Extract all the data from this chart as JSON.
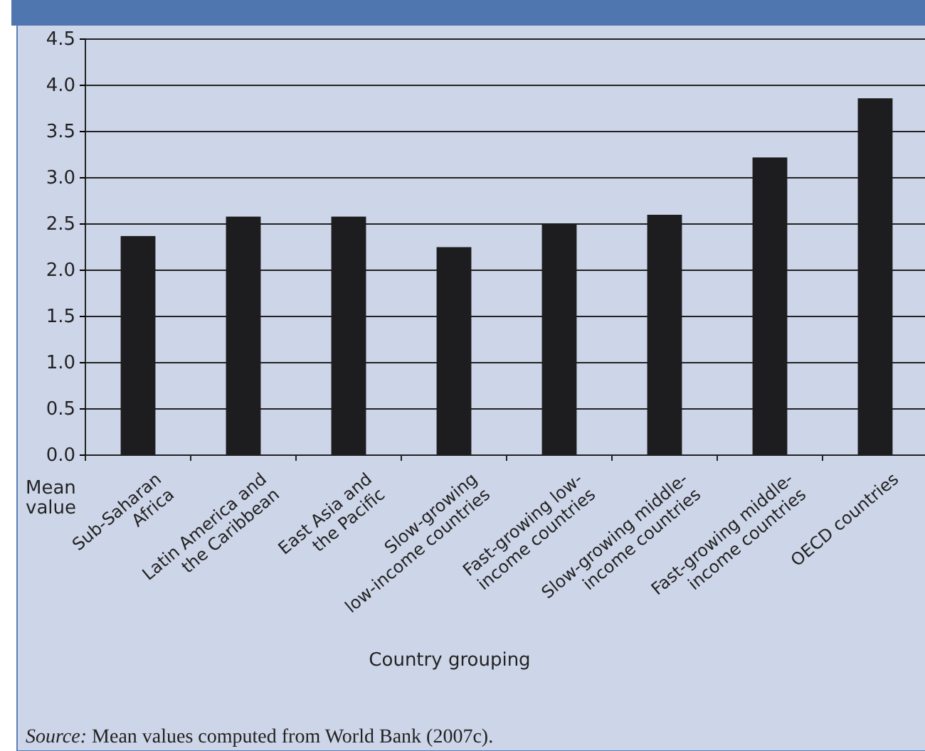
{
  "chart_data": {
    "type": "bar",
    "categories": [
      "Sub-Saharan\nAfrica",
      "Latin America and\nthe Caribbean",
      "East Asia and\nthe Pacific",
      "Slow-growing\nlow-income countries",
      "Fast-growing low-\nincome countries",
      "Slow-growing middle-\nincome countries",
      "Fast-growing middle-\nincome countries",
      "OECD countries"
    ],
    "values": [
      2.37,
      2.58,
      2.58,
      2.25,
      2.5,
      2.6,
      3.22,
      3.86
    ],
    "color": "#1d1d1f",
    "ylim": [
      0,
      4.5
    ],
    "yticks": [
      {
        "value": 0,
        "label": "0.0"
      },
      {
        "value": 0.5,
        "label": "0.5"
      },
      {
        "value": 1,
        "label": "1.0"
      },
      {
        "value": 1.5,
        "label": "1.5"
      },
      {
        "value": 2,
        "label": "2.0"
      },
      {
        "value": 2.5,
        "label": "2.5"
      },
      {
        "value": 3,
        "label": "3.0"
      },
      {
        "value": 3.5,
        "label": "3.5"
      },
      {
        "value": 4,
        "label": "4.0"
      },
      {
        "value": 4.5,
        "label": "4.5"
      }
    ],
    "grid": "y",
    "ylabel": "Mean\nvalue",
    "xlabel": "Country grouping",
    "annotations": [
      "Source: Mean values computed from World Bank (2007c)."
    ]
  }
}
